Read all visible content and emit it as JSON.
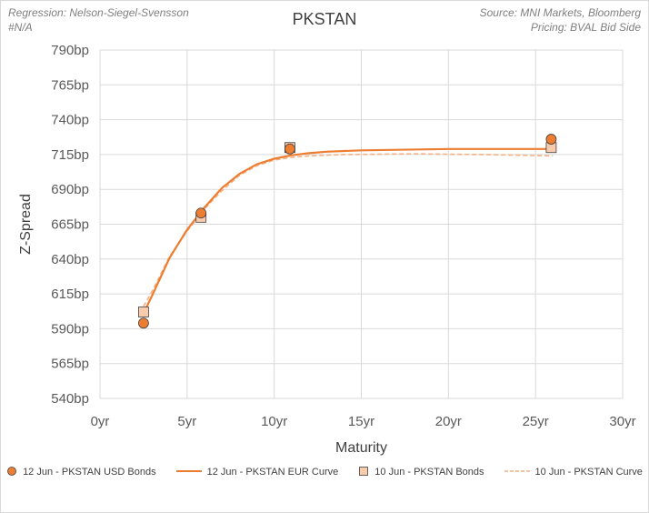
{
  "header": {
    "regression": "Regression: Nelson-Siegel-Svensson",
    "na": "#N/A",
    "source": "Source: MNI Markets, Bloomberg",
    "pricing": "Pricing: BVAL Bid Side"
  },
  "colors": {
    "usd_bonds": "#ED7D31",
    "eur_curve": "#ED7D31",
    "bonds_10jun": "#F8CBAD",
    "curve_10jun": "#F4B183",
    "grid": "#d9d9d9"
  },
  "chart_data": {
    "type": "scatter",
    "title": "PKSTAN",
    "xlabel": "Maturity",
    "ylabel": "Z-Spread",
    "xlim": [
      0,
      30
    ],
    "ylim": [
      540,
      790
    ],
    "x_ticks": [
      0,
      5,
      10,
      15,
      20,
      25,
      30
    ],
    "x_tick_labels": [
      "0yr",
      "5yr",
      "10yr",
      "15yr",
      "20yr",
      "25yr",
      "30yr"
    ],
    "y_ticks": [
      540,
      565,
      590,
      615,
      640,
      665,
      690,
      715,
      740,
      765,
      790
    ],
    "y_tick_labels": [
      "540bp",
      "565bp",
      "590bp",
      "615bp",
      "640bp",
      "665bp",
      "690bp",
      "715bp",
      "740bp",
      "765bp",
      "790bp"
    ],
    "grid": true,
    "legend_position": "bottom",
    "series": [
      {
        "name": "12 Jun - PKSTAN  USD Bonds",
        "kind": "markers",
        "marker": "circle",
        "points": [
          [
            2.5,
            594
          ],
          [
            5.8,
            673
          ],
          [
            10.9,
            719
          ],
          [
            25.9,
            726
          ]
        ]
      },
      {
        "name": "12 Jun - PKSTAN EUR Curve",
        "kind": "line",
        "style": "solid",
        "points": [
          [
            2.5,
            601
          ],
          [
            3,
            614
          ],
          [
            4,
            641
          ],
          [
            5,
            661
          ],
          [
            6,
            677
          ],
          [
            7,
            691
          ],
          [
            8,
            701
          ],
          [
            9,
            708
          ],
          [
            10,
            712
          ],
          [
            11,
            714.5
          ],
          [
            12,
            716
          ],
          [
            13,
            717
          ],
          [
            15,
            718
          ],
          [
            20,
            719
          ],
          [
            25,
            719
          ],
          [
            26,
            719
          ]
        ]
      },
      {
        "name": "10 Jun - PKSTAN Bonds",
        "kind": "markers",
        "marker": "square",
        "points": [
          [
            2.5,
            602
          ],
          [
            5.8,
            670
          ],
          [
            10.9,
            720
          ],
          [
            25.9,
            720
          ]
        ]
      },
      {
        "name": "10 Jun - PKSTAN Curve",
        "kind": "line",
        "style": "dashed",
        "points": [
          [
            2.5,
            606
          ],
          [
            3,
            617
          ],
          [
            4,
            642
          ],
          [
            5,
            660
          ],
          [
            6,
            676
          ],
          [
            7,
            689
          ],
          [
            8,
            700
          ],
          [
            9,
            707
          ],
          [
            10,
            711
          ],
          [
            11,
            713
          ],
          [
            12,
            714
          ],
          [
            14,
            715
          ],
          [
            18,
            715.5
          ],
          [
            22,
            715
          ],
          [
            26,
            714
          ]
        ]
      }
    ]
  }
}
